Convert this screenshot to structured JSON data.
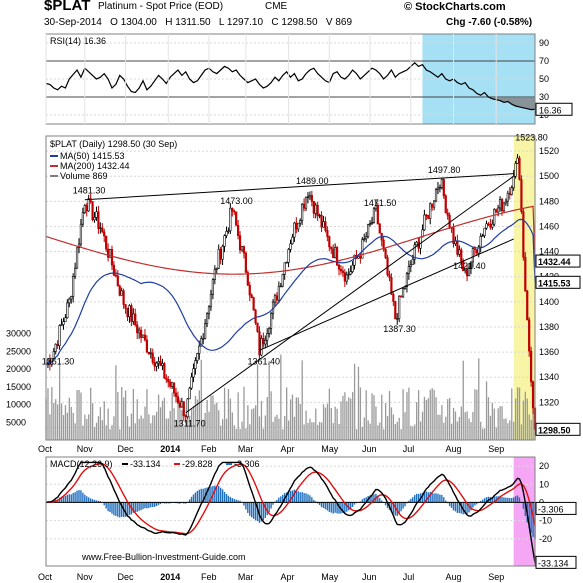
{
  "header": {
    "symbol": "$PLAT",
    "name": "Platinum - Spot Price (EOD)",
    "exchange": "CME",
    "brand": "© StockCharts.com",
    "quote": "30-Sep-2014   O 1304.00   H 1311.50   L 1297.10   C 1298.50   V 869",
    "change": "Chg -7.60 (-0.58%)"
  },
  "watermark": "www.Free-Bullion-Investment-Guide.com",
  "x_axis_labels": [
    "Oct",
    "Nov",
    "Dec",
    "2014",
    "Feb",
    "Mar",
    "Apr",
    "May",
    "Jun",
    "Jul",
    "Aug",
    "Sep"
  ],
  "chart_data": [
    {
      "type": "line",
      "title": "RSI(14) 16.36",
      "y_ticks": [
        90,
        70,
        50,
        30,
        10
      ],
      "ylim": [
        0,
        100
      ],
      "reference_lines": [
        70,
        30
      ],
      "current_value_label": "16.36",
      "x": [
        0,
        2,
        4,
        6,
        8,
        10,
        12,
        14,
        16,
        18,
        20,
        22,
        24,
        26,
        28,
        30,
        32,
        34,
        36,
        38,
        40,
        42,
        44,
        46,
        48,
        50,
        52,
        54,
        56,
        58,
        60,
        62,
        64,
        66,
        68,
        70,
        72,
        74,
        76,
        78,
        80,
        82,
        84,
        86,
        88,
        90,
        92,
        94,
        96,
        98,
        100,
        102,
        104,
        106,
        108,
        110,
        112,
        114,
        116,
        118,
        120,
        122,
        124,
        126,
        128,
        130,
        132,
        134,
        136,
        138,
        140,
        142,
        144,
        146,
        148,
        150,
        152,
        154,
        156,
        158,
        160,
        162,
        164,
        166,
        168,
        170,
        172,
        174,
        176,
        178,
        180,
        182,
        184,
        186,
        188,
        190,
        192,
        194,
        196,
        198,
        200,
        202,
        204,
        206,
        208,
        210,
        212,
        214,
        216,
        218,
        220,
        222,
        224,
        226,
        228,
        230,
        232,
        234,
        236,
        238,
        240,
        242,
        244,
        246,
        248,
        250,
        252
      ],
      "values": [
        45,
        44,
        40,
        38,
        42,
        40,
        50,
        55,
        60,
        52,
        62,
        58,
        54,
        50,
        52,
        56,
        50,
        40,
        44,
        54,
        50,
        42,
        36,
        35,
        40,
        48,
        38,
        42,
        48,
        54,
        50,
        45,
        52,
        56,
        60,
        54,
        58,
        50,
        46,
        48,
        54,
        60,
        62,
        58,
        56,
        60,
        64,
        62,
        58,
        60,
        54,
        50,
        46,
        48,
        50,
        44,
        40,
        42,
        46,
        52,
        48,
        54,
        58,
        52,
        56,
        48,
        50,
        56,
        60,
        62,
        56,
        52,
        48,
        46,
        56,
        58,
        52,
        50,
        54,
        60,
        56,
        50,
        54,
        58,
        62,
        60,
        56,
        50,
        54,
        60,
        52,
        56,
        58,
        60,
        64,
        68,
        64,
        66,
        60,
        58,
        55,
        52,
        56,
        50,
        48,
        50,
        46,
        44,
        46,
        40,
        38,
        34,
        32,
        35,
        30,
        28,
        27,
        26,
        24,
        25,
        22,
        20,
        19,
        18,
        17,
        16,
        16.36
      ],
      "highlight_region": {
        "from": 194,
        "to": 252,
        "color": "#a6e0f5"
      }
    },
    {
      "type": "candlestick",
      "title": "$PLAT (Daily) 1298.50 (30 Sep)",
      "legend": [
        {
          "name": "MA(50) 1415.53",
          "color": "#1f3f9f"
        },
        {
          "name": "MA(200) 1432.44",
          "color": "#c03030"
        },
        {
          "name": "Volume 869",
          "color": "#7f7f7f"
        }
      ],
      "y_ticks": [
        1520,
        1500,
        1480,
        1460,
        1440,
        1420,
        1400,
        1380,
        1360,
        1340,
        1320,
        1300
      ],
      "ylim": [
        1290,
        1532
      ],
      "volume_ticks": [
        30000,
        25000,
        20000,
        15000,
        10000,
        5000
      ],
      "volume_lim": [
        0,
        40000
      ],
      "annotations": [
        {
          "label": "1481.30",
          "x": 20,
          "y": 1481.3
        },
        {
          "label": "1473.00",
          "x": 96,
          "y": 1473.0
        },
        {
          "label": "1489.00",
          "x": 135,
          "y": 1489.0
        },
        {
          "label": "1471.50",
          "x": 170,
          "y": 1471.5
        },
        {
          "label": "1497.80",
          "x": 203,
          "y": 1497.8
        },
        {
          "label": "1523.80",
          "x": 248,
          "y": 1523.8
        },
        {
          "label": "1361.30",
          "x": 4,
          "y": 1361.3
        },
        {
          "label": "1311.70",
          "x": 72,
          "y": 1311.7
        },
        {
          "label": "1361.40",
          "x": 110,
          "y": 1361.4
        },
        {
          "label": "1387.30",
          "x": 180,
          "y": 1387.3
        },
        {
          "label": "1421.40",
          "x": 216,
          "y": 1421.4
        }
      ],
      "trendlines": [
        {
          "x1": 20,
          "y1": 1481.3,
          "x2": 241,
          "y2": 1502
        },
        {
          "x1": 72,
          "y1": 1311.7,
          "x2": 241,
          "y2": 1500
        },
        {
          "x1": 110,
          "y1": 1361.4,
          "x2": 241,
          "y2": 1450
        }
      ],
      "price_labels": [
        {
          "label": "1432.44",
          "value": 1432.44
        },
        {
          "label": "1415.53",
          "value": 1415.53
        },
        {
          "label": "1298.50",
          "value": 1298.5
        }
      ],
      "highlight_region": {
        "from": 241,
        "to": 252,
        "color": "#f9f5a6"
      }
    },
    {
      "type": "line",
      "title": "MACD(12,26,9)",
      "series": [
        {
          "name": "-33.134",
          "color": "#000000"
        },
        {
          "name": "-29.828",
          "color": "#e01010"
        },
        {
          "name": "-3.306",
          "color": "#1f6fbf"
        }
      ],
      "y_ticks": [
        20,
        10,
        0,
        -10,
        -20
      ],
      "ylim": [
        -35,
        25
      ],
      "value_labels": [
        "-3.306",
        "-33.134"
      ],
      "highlight_region": {
        "from": 241,
        "to": 252,
        "color": "#f5a6f5"
      }
    }
  ]
}
